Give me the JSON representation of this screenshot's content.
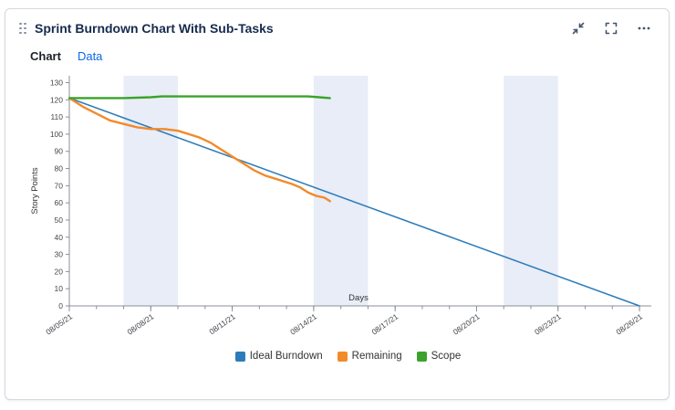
{
  "widget": {
    "title": "Sprint Burndown Chart With Sub-Tasks",
    "tabs": [
      {
        "label": "Chart",
        "active": true
      },
      {
        "label": "Data",
        "active": false
      }
    ],
    "header_icons": [
      "drag-handle-icon",
      "collapse-icon",
      "fullscreen-icon",
      "more-options-icon"
    ],
    "colors": {
      "title": "#172b4d",
      "tab_link": "#0c66e4",
      "icon": "#44546f",
      "card_border": "#d5d9e0"
    }
  },
  "chart_data": {
    "type": "line",
    "title": "",
    "xlabel": "Days",
    "ylabel": "Story Points",
    "ylim": [
      0,
      130
    ],
    "y_tick_step": 10,
    "xlim": [
      0,
      21.3
    ],
    "x_unit": "days since 08/05/21",
    "x_ticks": [
      {
        "day": 0,
        "label": "08/05/21"
      },
      {
        "day": 3,
        "label": "08/08/21"
      },
      {
        "day": 6,
        "label": "08/11/21"
      },
      {
        "day": 9,
        "label": "08/14/21"
      },
      {
        "day": 12,
        "label": "08/17/21"
      },
      {
        "day": 15,
        "label": "08/20/21"
      },
      {
        "day": 18,
        "label": "08/23/21"
      },
      {
        "day": 21,
        "label": "08/26/21"
      }
    ],
    "minor_tick_every_days": 1,
    "grid": false,
    "weekend_bands": [
      [
        2,
        4
      ],
      [
        9,
        11
      ],
      [
        16,
        18
      ]
    ],
    "band_color": "#e8edf7",
    "legend_position": "bottom",
    "series": [
      {
        "name": "Ideal Burndown",
        "color": "#2d7cb9",
        "width": 1.6,
        "x": [
          0,
          21
        ],
        "y": [
          121,
          0
        ]
      },
      {
        "name": "Remaining",
        "color": "#f28a2a",
        "width": 2.4,
        "x": [
          0,
          0.5,
          1,
          1.5,
          2,
          2.5,
          3,
          3.5,
          4,
          4.4,
          4.8,
          5.2,
          5.6,
          6,
          6.4,
          6.8,
          7.2,
          7.6,
          8,
          8.2,
          8.5,
          8.8,
          9.1,
          9.4,
          9.6
        ],
        "y": [
          121,
          116,
          112,
          108,
          106,
          104,
          103,
          103,
          102,
          100,
          98,
          95,
          91,
          87,
          83,
          79,
          76,
          74,
          72,
          71,
          69,
          66,
          64,
          63,
          61
        ]
      },
      {
        "name": "Scope",
        "color": "#3aa32a",
        "width": 2.4,
        "x": [
          0,
          1,
          2,
          3,
          3.4,
          4,
          5,
          6,
          7,
          8,
          8.8,
          9.2,
          9.6
        ],
        "y": [
          121,
          121,
          121,
          121.5,
          122,
          122,
          122,
          122,
          122,
          122,
          122,
          121.5,
          121
        ]
      }
    ]
  }
}
